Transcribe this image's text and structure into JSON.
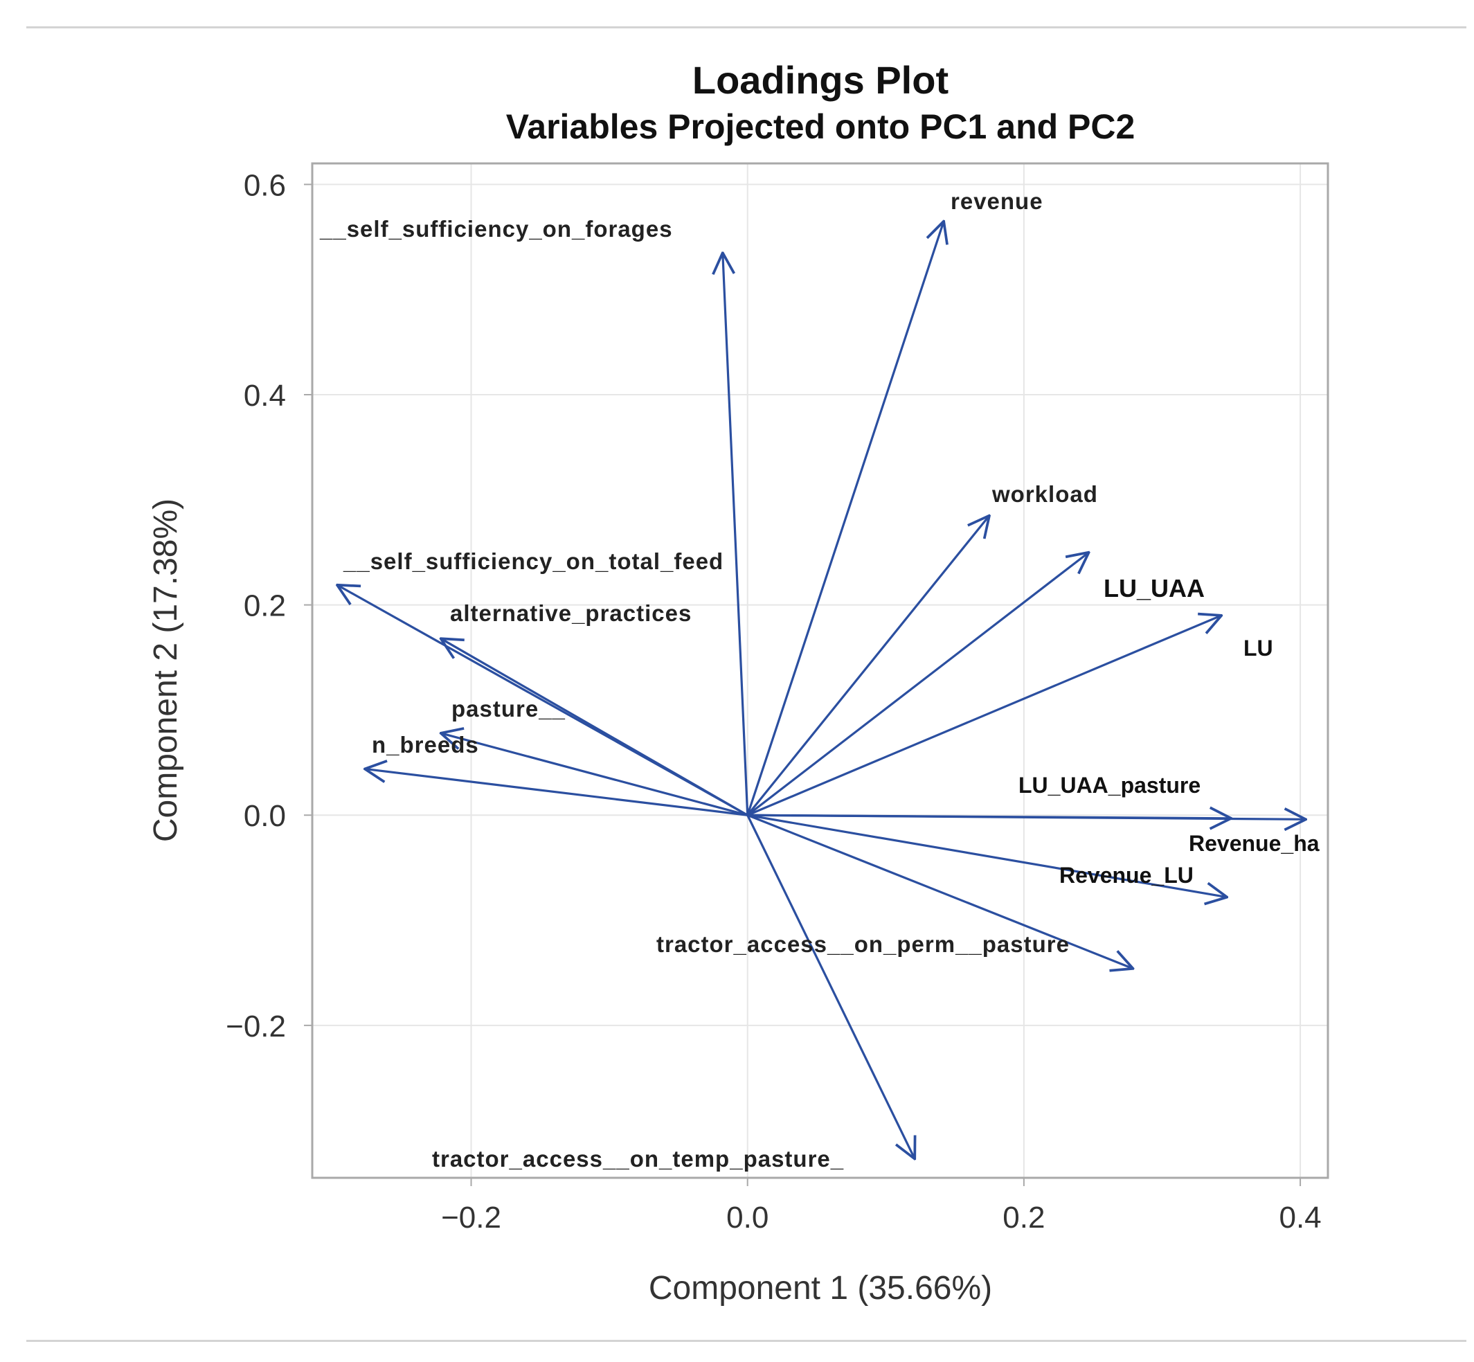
{
  "chart_data": {
    "type": "loadings-vector",
    "title": "Loadings Plot",
    "subtitle": "Variables Projected onto PC1 and PC2",
    "xlabel": "Component 1 (35.66%)",
    "ylabel": "Component 2 (17.38%)",
    "xlim": [
      -0.315,
      0.42
    ],
    "ylim": [
      -0.345,
      0.62
    ],
    "xticks": [
      -0.2,
      0.0,
      0.2,
      0.4
    ],
    "yticks": [
      -0.2,
      0.0,
      0.2,
      0.4,
      0.6
    ],
    "xtick_labels": [
      "−0.2",
      "0.0",
      "0.2",
      "0.4"
    ],
    "ytick_labels": [
      "−0.2",
      "0.0",
      "0.2",
      "0.4",
      "0.6"
    ],
    "grid": true,
    "origin": [
      0,
      0
    ],
    "arrow_color": "#2b4fa0",
    "vectors": [
      {
        "name": "revenue",
        "x": 0.142,
        "y": 0.565
      },
      {
        "name": "__self_sufficiency_on_forages",
        "x": -0.018,
        "y": 0.535
      },
      {
        "name": "workload",
        "x": 0.175,
        "y": 0.285
      },
      {
        "name": "LU_UAA",
        "x": 0.247,
        "y": 0.25
      },
      {
        "name": "LU",
        "x": 0.343,
        "y": 0.19
      },
      {
        "name": "__self_sufficiency_on_total_feed",
        "x": -0.297,
        "y": 0.219
      },
      {
        "name": "alternative_practices",
        "x": -0.222,
        "y": 0.168
      },
      {
        "name": "pasture__",
        "x": -0.222,
        "y": 0.078
      },
      {
        "name": "n_breeds",
        "x": -0.277,
        "y": 0.044
      },
      {
        "name": "LU_UAA_pasture",
        "x": 0.35,
        "y": -0.003
      },
      {
        "name": "Revenue_ha",
        "x": 0.404,
        "y": -0.004
      },
      {
        "name": "Revenue_LU",
        "x": 0.347,
        "y": -0.078
      },
      {
        "name": "tractor_access__on_perm__pasture",
        "x": 0.279,
        "y": -0.146
      },
      {
        "name": "tractor_access__on_temp_pasture_",
        "x": 0.121,
        "y": -0.327
      }
    ]
  }
}
